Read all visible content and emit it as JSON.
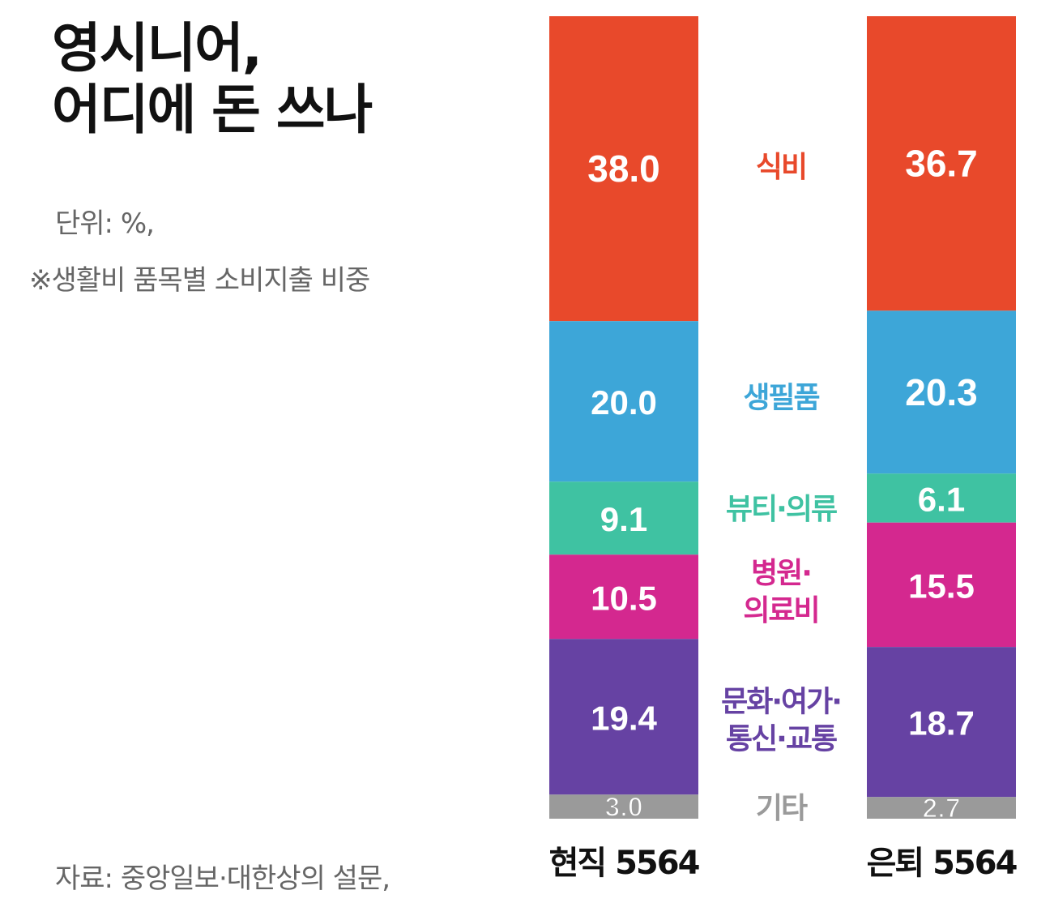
{
  "title_line1": "영시니어,",
  "title_line2": "어디에 돈 쓰나",
  "unit": "단위: %,",
  "note": "※생활비 품목별 소비지출 비중",
  "source": "자료: 중앙일보·대한상의 설문,",
  "colors": {
    "식비": "#e8492b",
    "생필품": "#3da6d8",
    "뷰티의류": "#3fc2a2",
    "병원의료비": "#d4288f",
    "문화여가": "#6642a3",
    "기타": "#9a9a9a",
    "value_text": "#ffffff",
    "axis_text": "#111111"
  },
  "chart_data": {
    "type": "bar",
    "stacked": true,
    "orientation": "vertical",
    "title": "영시니어, 어디에 돈 쓰나",
    "ylabel": "단위: %",
    "ylim": [
      0,
      100
    ],
    "categories": [
      "현직 5564",
      "은퇴 5564"
    ],
    "series": [
      {
        "name": "식비",
        "label_lines": [
          "식비"
        ],
        "values": [
          38.0,
          36.7
        ],
        "labels": [
          "38.0",
          "36.7"
        ],
        "color_key": "식비"
      },
      {
        "name": "생필품",
        "label_lines": [
          "생필품"
        ],
        "values": [
          20.0,
          20.3
        ],
        "labels": [
          "20.0",
          "20.3"
        ],
        "color_key": "생필품"
      },
      {
        "name": "뷰티·의류",
        "label_lines": [
          "뷰티·의류"
        ],
        "values": [
          9.1,
          6.1
        ],
        "labels": [
          "9.1",
          "6.1"
        ],
        "color_key": "뷰티의류"
      },
      {
        "name": "병원·의료비",
        "label_lines": [
          "병원·",
          "의료비"
        ],
        "values": [
          10.5,
          15.5
        ],
        "labels": [
          "10.5",
          "15.5"
        ],
        "color_key": "병원의료비"
      },
      {
        "name": "문화·여가·통신·교통",
        "label_lines": [
          "문화·여가·",
          "통신·교통"
        ],
        "values": [
          19.4,
          18.7
        ],
        "labels": [
          "19.4",
          "18.7"
        ],
        "color_key": "문화여가"
      },
      {
        "name": "기타",
        "label_lines": [
          "기타"
        ],
        "values": [
          3.0,
          2.7
        ],
        "labels": [
          "3.0",
          "2.7"
        ],
        "color_key": "기타"
      }
    ]
  }
}
